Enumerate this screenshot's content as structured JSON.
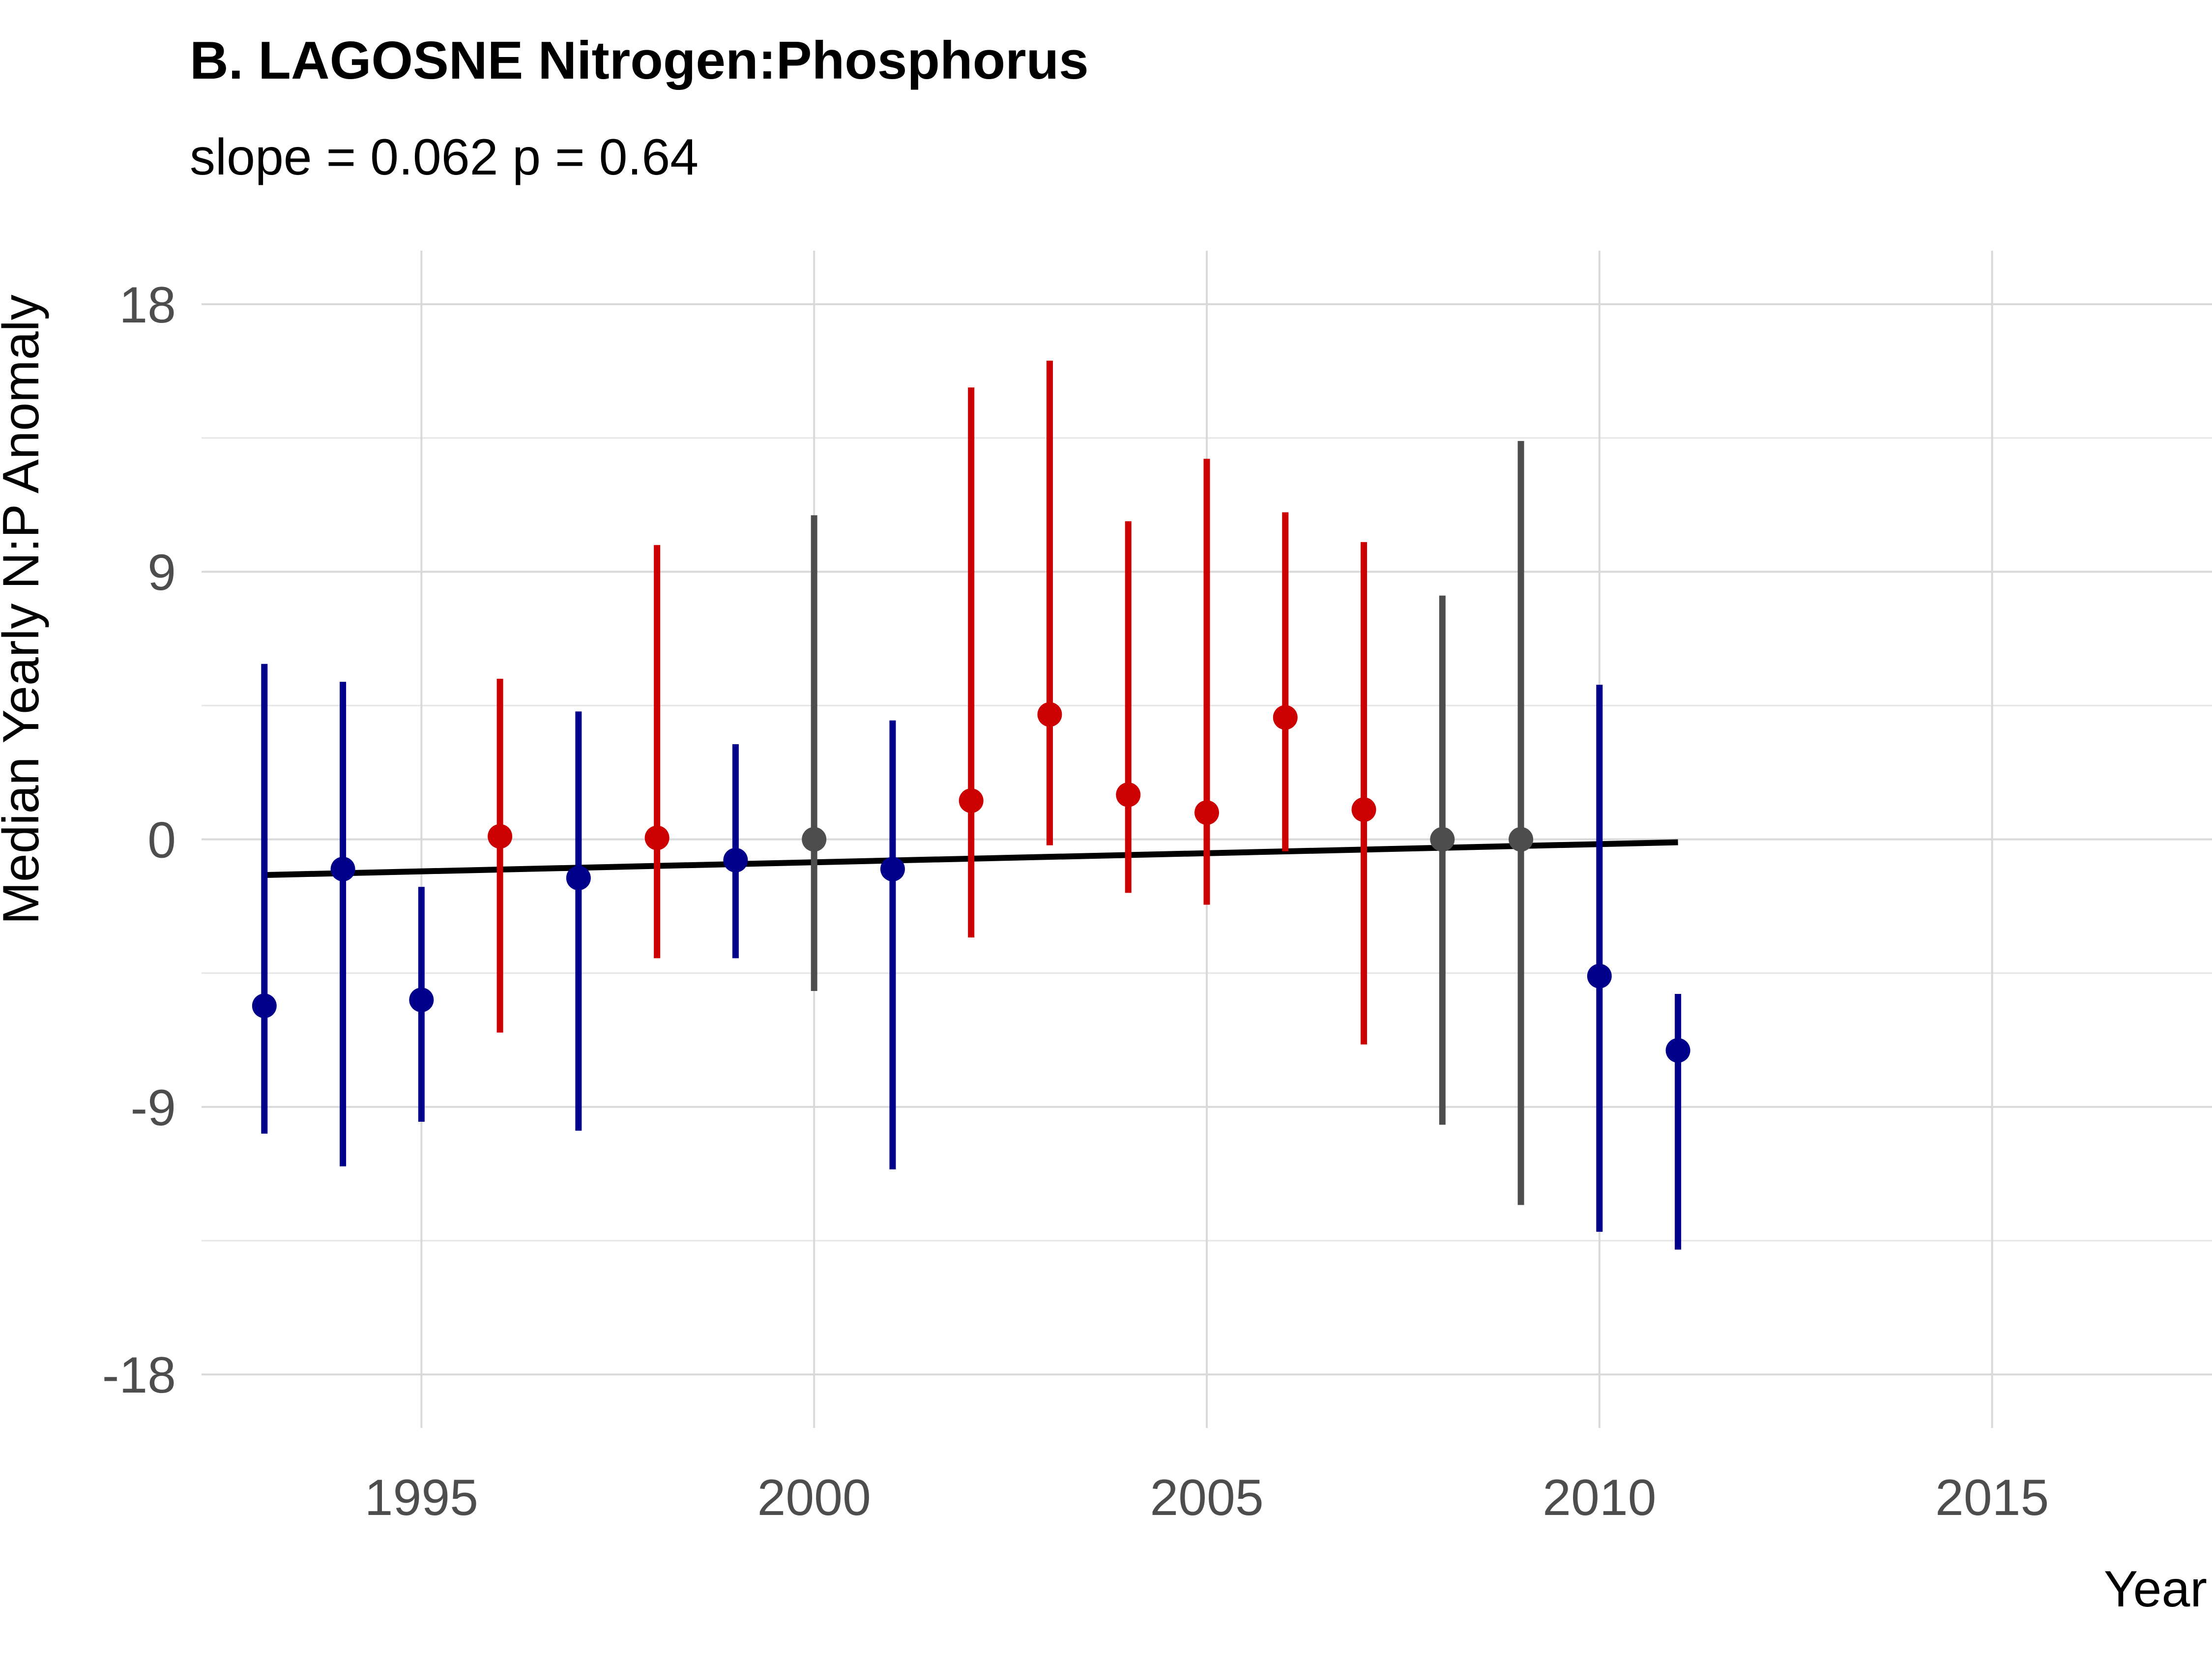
{
  "chart_data": {
    "type": "scatter",
    "title": "B. LAGOSNE Nitrogen:Phosphorus",
    "subtitle": "slope = 0.062 p = 0.64",
    "xlabel": "Year",
    "ylabel": "Median Yearly N:P Anomaly",
    "xlim": [
      1992.2,
      2017.8
    ],
    "ylim": [
      -19.8,
      19.8
    ],
    "x_ticks": [
      1995,
      2000,
      2005,
      2010,
      2015
    ],
    "x_tick_labels": [
      "1995",
      "2000",
      "2005",
      "2010",
      "2015"
    ],
    "y_ticks": [
      -18,
      -9,
      0,
      9,
      18
    ],
    "y_tick_labels": [
      "-18",
      "-9",
      "0",
      "9",
      "18"
    ],
    "grid": true,
    "legend": "none",
    "colors": {
      "below": "#00008b",
      "above": "#cc0000",
      "neutral": "#4d4d4d",
      "trend": "#000000"
    },
    "points": [
      {
        "x": 1993,
        "y": -5.6,
        "low": -9.9,
        "high": 5.9,
        "group": "below"
      },
      {
        "x": 1994,
        "y": -1.0,
        "low": -11.0,
        "high": 5.3,
        "group": "below"
      },
      {
        "x": 1995,
        "y": -5.4,
        "low": -9.5,
        "high": -1.6,
        "group": "below"
      },
      {
        "x": 1996,
        "y": 0.1,
        "low": -6.5,
        "high": 5.4,
        "group": "above"
      },
      {
        "x": 1997,
        "y": -1.3,
        "low": -9.8,
        "high": 4.3,
        "group": "below"
      },
      {
        "x": 1998,
        "y": 0.05,
        "low": -4.0,
        "high": 9.9,
        "group": "above"
      },
      {
        "x": 1999,
        "y": -0.7,
        "low": -4.0,
        "high": 3.2,
        "group": "below"
      },
      {
        "x": 2000,
        "y": 0.0,
        "low": -5.1,
        "high": 10.9,
        "group": "neutral"
      },
      {
        "x": 2001,
        "y": -1.0,
        "low": -11.1,
        "high": 4.0,
        "group": "below"
      },
      {
        "x": 2002,
        "y": 1.3,
        "low": -3.3,
        "high": 15.2,
        "group": "above"
      },
      {
        "x": 2003,
        "y": 4.2,
        "low": -0.2,
        "high": 16.1,
        "group": "above"
      },
      {
        "x": 2004,
        "y": 1.5,
        "low": -1.8,
        "high": 10.7,
        "group": "above"
      },
      {
        "x": 2005,
        "y": 0.9,
        "low": -2.2,
        "high": 12.8,
        "group": "above"
      },
      {
        "x": 2006,
        "y": 4.1,
        "low": -0.4,
        "high": 11.0,
        "group": "above"
      },
      {
        "x": 2007,
        "y": 1.0,
        "low": -6.9,
        "high": 10.0,
        "group": "above"
      },
      {
        "x": 2008,
        "y": 0.0,
        "low": -9.6,
        "high": 8.2,
        "group": "neutral"
      },
      {
        "x": 2009,
        "y": 0.0,
        "low": -12.3,
        "high": 13.4,
        "group": "neutral"
      },
      {
        "x": 2010,
        "y": -4.6,
        "low": -13.2,
        "high": 5.2,
        "group": "below"
      },
      {
        "x": 2011,
        "y": -7.1,
        "low": -13.8,
        "high": -5.2,
        "group": "below"
      }
    ],
    "trend_line": {
      "x": [
        1993,
        2011
      ],
      "y": [
        -1.2,
        -0.1
      ]
    }
  }
}
